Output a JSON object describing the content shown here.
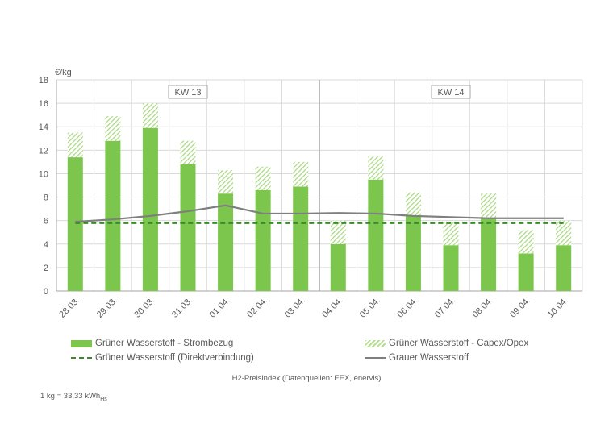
{
  "chart_data": {
    "type": "bar",
    "ylabel": "€/kg",
    "ylim": [
      0,
      18
    ],
    "yticks": [
      0,
      2,
      4,
      6,
      8,
      10,
      12,
      14,
      16,
      18
    ],
    "categories": [
      "28.03.",
      "29.03.",
      "30.03.",
      "31.03.",
      "01.04.",
      "02.04.",
      "03.04.",
      "04.04.",
      "05.04.",
      "06.04.",
      "07.04.",
      "08.04.",
      "09.04.",
      "10.04."
    ],
    "week_labels": [
      {
        "label": "KW 13",
        "start": 0,
        "end": 6
      },
      {
        "label": "KW 14",
        "start": 7,
        "end": 13
      }
    ],
    "series": [
      {
        "name": "Grüner Wasserstoff - Strombezug",
        "kind": "bar-stack",
        "values": [
          11.4,
          12.8,
          13.9,
          10.8,
          8.3,
          8.6,
          8.9,
          4.0,
          9.5,
          6.4,
          3.9,
          6.2,
          3.2,
          3.9
        ]
      },
      {
        "name": "Grüner Wasserstoff - Capex/Opex",
        "kind": "bar-stack-hatched",
        "values": [
          2.1,
          2.1,
          2.1,
          2.0,
          2.0,
          2.0,
          2.1,
          2.0,
          2.0,
          2.0,
          2.0,
          2.1,
          2.0,
          2.1
        ]
      },
      {
        "name": "Grüner Wasserstoff (Direktverbindung)",
        "kind": "line-dashed",
        "values": [
          5.8,
          5.8,
          5.8,
          5.8,
          5.8,
          5.8,
          5.8,
          5.8,
          5.8,
          5.8,
          5.8,
          5.8,
          5.8,
          5.8
        ]
      },
      {
        "name": "Grauer Wasserstoff",
        "kind": "line",
        "values": [
          5.9,
          6.1,
          6.4,
          6.8,
          7.3,
          6.6,
          6.6,
          6.65,
          6.6,
          6.4,
          6.3,
          6.2,
          6.2,
          6.2
        ]
      }
    ],
    "colors": {
      "bar": "#7dc64d",
      "hatch": "#a8d880",
      "dashed": "#3a8a2a",
      "grey": "#7f7f7f",
      "grid": "#d9d9d9"
    },
    "grid": true,
    "legend_position": "bottom"
  },
  "caption": "H2-Preisindex (Datenquellen: EEX, enervis)",
  "footnote_main": "1 kg = 33,33 kWh",
  "footnote_sub": "Hs"
}
